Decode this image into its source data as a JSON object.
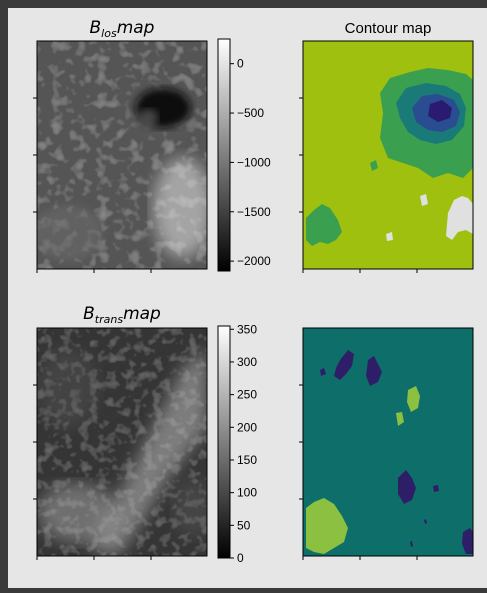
{
  "chart_data": [
    {
      "type": "heatmap",
      "title_base": "B",
      "title_sub": "los",
      "title_suffix": "map",
      "colormap": "gray",
      "colorbar": {
        "ticks": [
          0,
          -500,
          -1000,
          -1500,
          -2000
        ],
        "tick_labels": [
          "0",
          "−500",
          "−1000",
          "−1500",
          "−2000"
        ],
        "range": [
          -2100,
          250
        ]
      },
      "features": [
        {
          "kind": "dark-sunspot",
          "location": "upper-right",
          "min_value": -2100
        },
        {
          "kind": "mottled-region",
          "location": "lower-left"
        }
      ]
    },
    {
      "type": "heatmap",
      "title": "Contour map",
      "colors": [
        "#a0c010",
        "#3aa050",
        "#1a7a78",
        "#2a4c90",
        "#2a1a70",
        "#e0e0e0"
      ]
    },
    {
      "type": "heatmap",
      "title_base": "B",
      "title_sub": "trans",
      "title_suffix": "map",
      "colormap": "gray",
      "colorbar": {
        "ticks": [
          350,
          300,
          250,
          200,
          150,
          100,
          50,
          0
        ],
        "tick_labels": [
          "350",
          "300",
          "250",
          "200",
          "150",
          "100",
          "50",
          "0"
        ],
        "range": [
          0,
          355
        ]
      }
    },
    {
      "type": "heatmap",
      "colors": [
        "#0e6e6a",
        "#2e1e68",
        "#8cc040"
      ]
    }
  ]
}
